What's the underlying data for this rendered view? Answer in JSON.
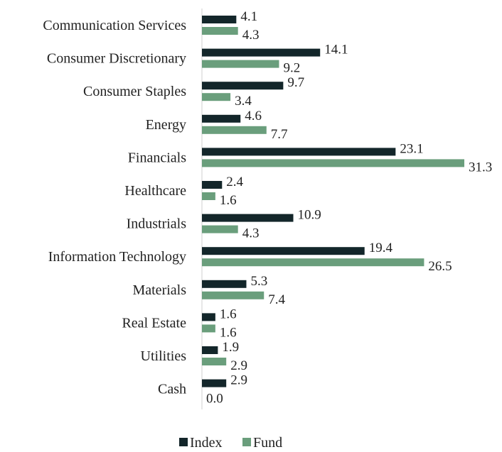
{
  "chart_data": {
    "type": "bar",
    "orientation": "horizontal",
    "categories": [
      "Communication Services",
      "Consumer Discretionary",
      "Consumer Staples",
      "Energy",
      "Financials",
      "Healthcare",
      "Industrials",
      "Information Technology",
      "Materials",
      "Real Estate",
      "Utilities",
      "Cash"
    ],
    "series": [
      {
        "name": "Index",
        "color": "#13262a",
        "values": [
          4.1,
          14.1,
          9.7,
          4.6,
          23.1,
          2.4,
          10.9,
          19.4,
          5.3,
          1.6,
          1.9,
          2.9
        ]
      },
      {
        "name": "Fund",
        "color": "#6a9e7c",
        "values": [
          4.3,
          9.2,
          3.4,
          7.7,
          31.3,
          1.6,
          4.3,
          26.5,
          7.4,
          1.6,
          2.9,
          0.0
        ]
      }
    ],
    "value_labels": [
      [
        "4.1",
        "14.1",
        "9.7",
        "4.6",
        "23.1",
        "2.4",
        "10.9",
        "19.4",
        "5.3",
        "1.6",
        "1.9",
        "2.9"
      ],
      [
        "4.3",
        "9.2",
        "3.4",
        "7.7",
        "31.3",
        "1.6",
        "4.3",
        "26.5",
        "7.4",
        "1.6",
        "2.9",
        "0.0"
      ]
    ],
    "title": "",
    "xlabel": "",
    "ylabel": "",
    "xlim": [
      0,
      31.3
    ],
    "grid": false,
    "legend_position": "bottom"
  }
}
